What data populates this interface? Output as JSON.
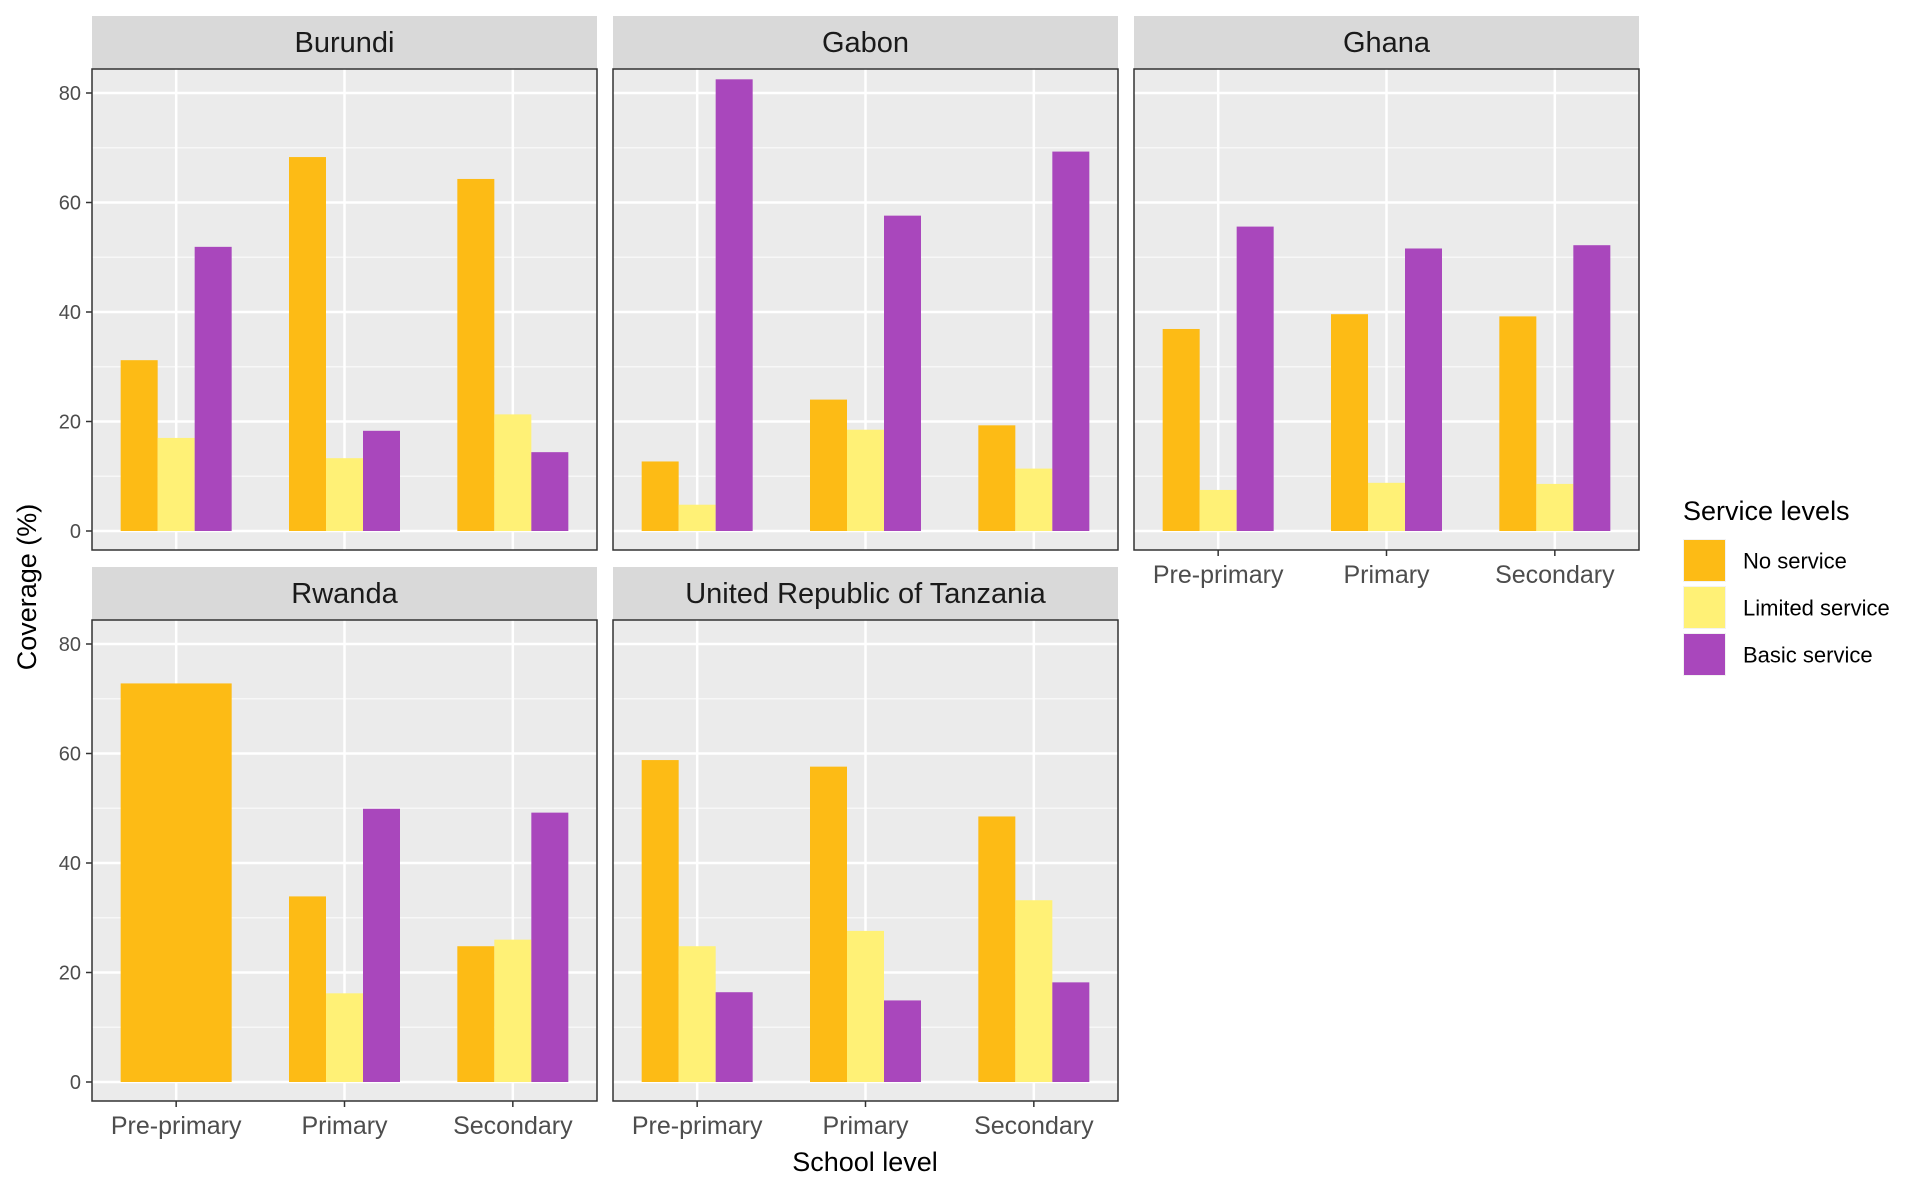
{
  "chart_data": {
    "type": "bar",
    "xlabel": "School level",
    "ylabel": "Coverage (%)",
    "ylim": [
      0,
      87
    ],
    "yticks": [
      0,
      20,
      40,
      60,
      80
    ],
    "grid": true,
    "categories": [
      "Pre-primary",
      "Primary",
      "Secondary"
    ],
    "legend": {
      "title": "Service levels",
      "placement": "right",
      "entries": [
        {
          "name": "No service",
          "color": "#FDBB15"
        },
        {
          "name": "Limited service",
          "color": "#FFF176"
        },
        {
          "name": "Basic service",
          "color": "#A947BC"
        }
      ]
    },
    "panels": [
      {
        "title": "Burundi",
        "series": [
          {
            "name": "No service",
            "values": [
              31.2,
              68.3,
              64.3
            ]
          },
          {
            "name": "Limited service",
            "values": [
              17.0,
              13.3,
              21.3
            ]
          },
          {
            "name": "Basic service",
            "values": [
              51.9,
              18.3,
              14.4
            ]
          }
        ]
      },
      {
        "title": "Gabon",
        "series": [
          {
            "name": "No service",
            "values": [
              12.7,
              24.0,
              19.3
            ]
          },
          {
            "name": "Limited service",
            "values": [
              4.8,
              18.5,
              11.4
            ]
          },
          {
            "name": "Basic service",
            "values": [
              82.5,
              57.6,
              69.3
            ]
          }
        ]
      },
      {
        "title": "Ghana",
        "series": [
          {
            "name": "No service",
            "values": [
              36.9,
              39.6,
              39.2
            ]
          },
          {
            "name": "Limited service",
            "values": [
              7.5,
              8.8,
              8.6
            ]
          },
          {
            "name": "Basic service",
            "values": [
              55.6,
              51.6,
              52.2
            ]
          }
        ]
      },
      {
        "title": "Rwanda",
        "series": [
          {
            "name": "No service",
            "values": [
              72.8,
              33.9,
              24.8
            ]
          },
          {
            "name": "Limited service",
            "values": [
              null,
              16.2,
              26.0
            ]
          },
          {
            "name": "Basic service",
            "values": [
              null,
              49.9,
              49.2
            ]
          }
        ]
      },
      {
        "title": "United Republic of Tanzania",
        "series": [
          {
            "name": "No service",
            "values": [
              58.8,
              57.6,
              48.5
            ]
          },
          {
            "name": "Limited service",
            "values": [
              24.8,
              27.6,
              33.2
            ]
          },
          {
            "name": "Basic service",
            "values": [
              16.4,
              14.9,
              18.2
            ]
          }
        ]
      }
    ]
  }
}
